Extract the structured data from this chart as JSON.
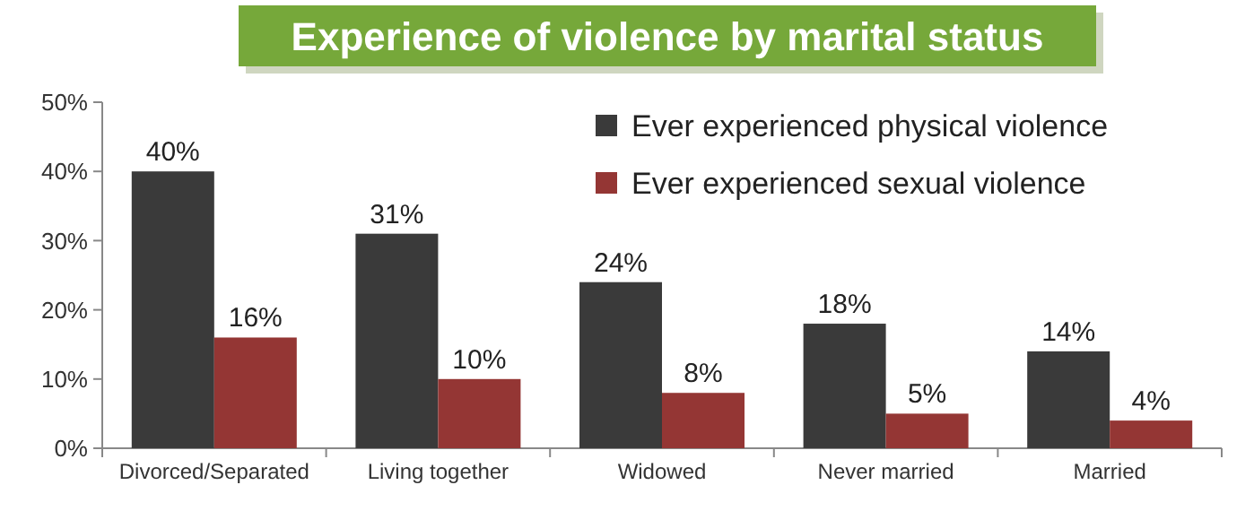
{
  "chart_data": {
    "type": "bar",
    "title": "Experience of violence by marital status",
    "categories": [
      "Divorced/Separated",
      "Living together",
      "Widowed",
      "Never married",
      "Married"
    ],
    "series": [
      {
        "name": "Ever experienced physical violence",
        "color": "#3a3a3a",
        "values": [
          40,
          31,
          24,
          18,
          14
        ],
        "value_labels": [
          "40%",
          "31%",
          "24%",
          "18%",
          "14%"
        ]
      },
      {
        "name": "Ever experienced sexual violence",
        "color": "#943634",
        "values": [
          16,
          10,
          8,
          5,
          4
        ],
        "value_labels": [
          "16%",
          "10%",
          "8%",
          "5%",
          "4%"
        ]
      }
    ],
    "ylim": [
      0,
      50
    ],
    "yticks": [
      {
        "value": 0,
        "label": "0%"
      },
      {
        "value": 10,
        "label": "10%"
      },
      {
        "value": 20,
        "label": "20%"
      },
      {
        "value": 30,
        "label": "30%"
      },
      {
        "value": 40,
        "label": "40%"
      },
      {
        "value": 50,
        "label": "50%"
      }
    ],
    "legend": "top right",
    "grid": false
  }
}
